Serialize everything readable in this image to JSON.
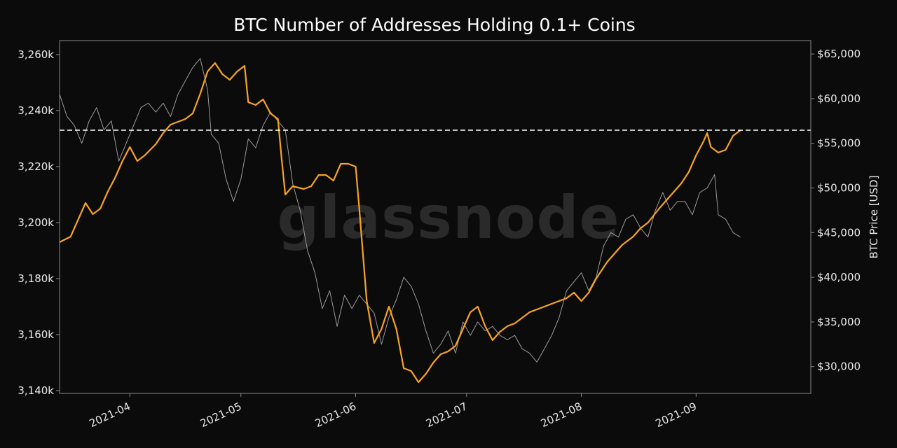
{
  "chart_data": {
    "type": "line",
    "title": "BTC Number of Addresses Holding 0.1+ Coins",
    "watermark": "glassnode",
    "ylabel_right": "BTC Price [USD]",
    "x_range": [
      "2021-03-13",
      "2021-10-02"
    ],
    "y_left_range": [
      3139000,
      3265000
    ],
    "y_right_range": [
      27000,
      66500
    ],
    "x_ticks": [
      {
        "date": "2021-04-01",
        "label": "2021-04"
      },
      {
        "date": "2021-05-01",
        "label": "2021-05"
      },
      {
        "date": "2021-06-01",
        "label": "2021-06"
      },
      {
        "date": "2021-07-01",
        "label": "2021-07"
      },
      {
        "date": "2021-08-01",
        "label": "2021-08"
      },
      {
        "date": "2021-09-01",
        "label": "2021-09"
      }
    ],
    "y_left_ticks": [
      {
        "value": 3140000,
        "label": "3,140k"
      },
      {
        "value": 3160000,
        "label": "3,160k"
      },
      {
        "value": 3180000,
        "label": "3,180k"
      },
      {
        "value": 3200000,
        "label": "3,200k"
      },
      {
        "value": 3220000,
        "label": "3,220k"
      },
      {
        "value": 3240000,
        "label": "3,240k"
      },
      {
        "value": 3260000,
        "label": "3,260k"
      }
    ],
    "y_right_ticks": [
      {
        "value": 30000,
        "label": "$30,000"
      },
      {
        "value": 35000,
        "label": "$35,000"
      },
      {
        "value": 40000,
        "label": "$40,000"
      },
      {
        "value": 45000,
        "label": "$45,000"
      },
      {
        "value": 50000,
        "label": "$50,000"
      },
      {
        "value": 55000,
        "label": "$55,000"
      },
      {
        "value": 60000,
        "label": "$60,000"
      },
      {
        "value": 65000,
        "label": "$65,000"
      }
    ],
    "reference_line": {
      "axis": "left",
      "value": 3233000,
      "style": "dashed",
      "color": "#ffffff"
    },
    "series": [
      {
        "axis": "left",
        "color": "#f7a325",
        "points": [
          [
            "2021-03-13",
            3193000
          ],
          [
            "2021-03-16",
            3195000
          ],
          [
            "2021-03-18",
            3201000
          ],
          [
            "2021-03-20",
            3207000
          ],
          [
            "2021-03-22",
            3203000
          ],
          [
            "2021-03-24",
            3205000
          ],
          [
            "2021-03-26",
            3211000
          ],
          [
            "2021-03-28",
            3216000
          ],
          [
            "2021-03-30",
            3222000
          ],
          [
            "2021-04-01",
            3227000
          ],
          [
            "2021-04-03",
            3222000
          ],
          [
            "2021-04-05",
            3224000
          ],
          [
            "2021-04-08",
            3228000
          ],
          [
            "2021-04-10",
            3232000
          ],
          [
            "2021-04-12",
            3235000
          ],
          [
            "2021-04-14",
            3236000
          ],
          [
            "2021-04-16",
            3237000
          ],
          [
            "2021-04-18",
            3239000
          ],
          [
            "2021-04-20",
            3246000
          ],
          [
            "2021-04-22",
            3254000
          ],
          [
            "2021-04-24",
            3257000
          ],
          [
            "2021-04-26",
            3253000
          ],
          [
            "2021-04-28",
            3251000
          ],
          [
            "2021-04-30",
            3254000
          ],
          [
            "2021-05-02",
            3256000
          ],
          [
            "2021-05-03",
            3243000
          ],
          [
            "2021-05-05",
            3242000
          ],
          [
            "2021-05-07",
            3244000
          ],
          [
            "2021-05-09",
            3239000
          ],
          [
            "2021-05-11",
            3237000
          ],
          [
            "2021-05-12",
            3223000
          ],
          [
            "2021-05-13",
            3210000
          ],
          [
            "2021-05-15",
            3213000
          ],
          [
            "2021-05-18",
            3212000
          ],
          [
            "2021-05-20",
            3213000
          ],
          [
            "2021-05-22",
            3217000
          ],
          [
            "2021-05-24",
            3217000
          ],
          [
            "2021-05-26",
            3215000
          ],
          [
            "2021-05-28",
            3221000
          ],
          [
            "2021-05-30",
            3221000
          ],
          [
            "2021-06-01",
            3220000
          ],
          [
            "2021-06-02",
            3205000
          ],
          [
            "2021-06-04",
            3172000
          ],
          [
            "2021-06-06",
            3157000
          ],
          [
            "2021-06-08",
            3162000
          ],
          [
            "2021-06-10",
            3170000
          ],
          [
            "2021-06-12",
            3162000
          ],
          [
            "2021-06-14",
            3148000
          ],
          [
            "2021-06-16",
            3147000
          ],
          [
            "2021-06-18",
            3143000
          ],
          [
            "2021-06-20",
            3146000
          ],
          [
            "2021-06-22",
            3150000
          ],
          [
            "2021-06-24",
            3153000
          ],
          [
            "2021-06-26",
            3154000
          ],
          [
            "2021-06-28",
            3156000
          ],
          [
            "2021-06-30",
            3162000
          ],
          [
            "2021-07-02",
            3168000
          ],
          [
            "2021-07-04",
            3170000
          ],
          [
            "2021-07-06",
            3163000
          ],
          [
            "2021-07-08",
            3158000
          ],
          [
            "2021-07-10",
            3161000
          ],
          [
            "2021-07-12",
            3163000
          ],
          [
            "2021-07-14",
            3164000
          ],
          [
            "2021-07-16",
            3166000
          ],
          [
            "2021-07-18",
            3168000
          ],
          [
            "2021-07-20",
            3169000
          ],
          [
            "2021-07-22",
            3170000
          ],
          [
            "2021-07-24",
            3171000
          ],
          [
            "2021-07-26",
            3172000
          ],
          [
            "2021-07-28",
            3173000
          ],
          [
            "2021-07-30",
            3175000
          ],
          [
            "2021-08-01",
            3172000
          ],
          [
            "2021-08-03",
            3175000
          ],
          [
            "2021-08-05",
            3180000
          ],
          [
            "2021-08-08",
            3186000
          ],
          [
            "2021-08-10",
            3189000
          ],
          [
            "2021-08-12",
            3192000
          ],
          [
            "2021-08-15",
            3195000
          ],
          [
            "2021-08-17",
            3198000
          ],
          [
            "2021-08-19",
            3200000
          ],
          [
            "2021-08-22",
            3205000
          ],
          [
            "2021-08-24",
            3208000
          ],
          [
            "2021-08-26",
            3211000
          ],
          [
            "2021-08-28",
            3214000
          ],
          [
            "2021-08-30",
            3218000
          ],
          [
            "2021-09-01",
            3224000
          ],
          [
            "2021-09-03",
            3229000
          ],
          [
            "2021-09-04",
            3232000
          ],
          [
            "2021-09-05",
            3227000
          ],
          [
            "2021-09-07",
            3225000
          ],
          [
            "2021-09-09",
            3226000
          ],
          [
            "2021-09-11",
            3231000
          ],
          [
            "2021-09-13",
            3233000
          ]
        ]
      },
      {
        "axis": "right",
        "color": "#9a9a9a",
        "points": [
          [
            "2021-03-13",
            60500
          ],
          [
            "2021-03-15",
            58000
          ],
          [
            "2021-03-17",
            57000
          ],
          [
            "2021-03-19",
            55000
          ],
          [
            "2021-03-21",
            57500
          ],
          [
            "2021-03-23",
            59000
          ],
          [
            "2021-03-25",
            56500
          ],
          [
            "2021-03-27",
            57500
          ],
          [
            "2021-03-29",
            53000
          ],
          [
            "2021-03-31",
            55000
          ],
          [
            "2021-04-02",
            57000
          ],
          [
            "2021-04-04",
            59000
          ],
          [
            "2021-04-06",
            59500
          ],
          [
            "2021-04-08",
            58500
          ],
          [
            "2021-04-10",
            59500
          ],
          [
            "2021-04-12",
            58000
          ],
          [
            "2021-04-14",
            60500
          ],
          [
            "2021-04-16",
            62000
          ],
          [
            "2021-04-18",
            63500
          ],
          [
            "2021-04-20",
            64500
          ],
          [
            "2021-04-22",
            61000
          ],
          [
            "2021-04-23",
            56000
          ],
          [
            "2021-04-25",
            55000
          ],
          [
            "2021-04-27",
            51000
          ],
          [
            "2021-04-29",
            48500
          ],
          [
            "2021-05-01",
            51000
          ],
          [
            "2021-05-03",
            55500
          ],
          [
            "2021-05-05",
            54500
          ],
          [
            "2021-05-07",
            57000
          ],
          [
            "2021-05-09",
            58500
          ],
          [
            "2021-05-11",
            57500
          ],
          [
            "2021-05-13",
            56500
          ],
          [
            "2021-05-15",
            50500
          ],
          [
            "2021-05-17",
            47500
          ],
          [
            "2021-05-19",
            43000
          ],
          [
            "2021-05-21",
            40500
          ],
          [
            "2021-05-23",
            36500
          ],
          [
            "2021-05-25",
            38500
          ],
          [
            "2021-05-27",
            34500
          ],
          [
            "2021-05-29",
            38000
          ],
          [
            "2021-05-31",
            36500
          ],
          [
            "2021-06-02",
            38000
          ],
          [
            "2021-06-04",
            37000
          ],
          [
            "2021-06-06",
            36000
          ],
          [
            "2021-06-08",
            32500
          ],
          [
            "2021-06-10",
            35500
          ],
          [
            "2021-06-12",
            37500
          ],
          [
            "2021-06-14",
            40000
          ],
          [
            "2021-06-16",
            39000
          ],
          [
            "2021-06-18",
            37000
          ],
          [
            "2021-06-20",
            34000
          ],
          [
            "2021-06-22",
            31500
          ],
          [
            "2021-06-24",
            32500
          ],
          [
            "2021-06-26",
            34000
          ],
          [
            "2021-06-28",
            31500
          ],
          [
            "2021-06-30",
            35000
          ],
          [
            "2021-07-02",
            33500
          ],
          [
            "2021-07-04",
            35000
          ],
          [
            "2021-07-06",
            34000
          ],
          [
            "2021-07-08",
            34500
          ],
          [
            "2021-07-10",
            33500
          ],
          [
            "2021-07-12",
            33000
          ],
          [
            "2021-07-14",
            33500
          ],
          [
            "2021-07-16",
            32000
          ],
          [
            "2021-07-18",
            31500
          ],
          [
            "2021-07-20",
            30500
          ],
          [
            "2021-07-22",
            32000
          ],
          [
            "2021-07-24",
            33500
          ],
          [
            "2021-07-26",
            35500
          ],
          [
            "2021-07-28",
            38500
          ],
          [
            "2021-07-30",
            39500
          ],
          [
            "2021-08-01",
            40500
          ],
          [
            "2021-08-03",
            38500
          ],
          [
            "2021-08-05",
            40000
          ],
          [
            "2021-08-07",
            43500
          ],
          [
            "2021-08-09",
            45000
          ],
          [
            "2021-08-11",
            44500
          ],
          [
            "2021-08-13",
            46500
          ],
          [
            "2021-08-15",
            47000
          ],
          [
            "2021-08-17",
            45500
          ],
          [
            "2021-08-19",
            44500
          ],
          [
            "2021-08-21",
            47500
          ],
          [
            "2021-08-23",
            49500
          ],
          [
            "2021-08-25",
            47500
          ],
          [
            "2021-08-27",
            48500
          ],
          [
            "2021-08-29",
            48500
          ],
          [
            "2021-08-31",
            47000
          ],
          [
            "2021-09-02",
            49500
          ],
          [
            "2021-09-04",
            50000
          ],
          [
            "2021-09-06",
            51500
          ],
          [
            "2021-09-07",
            47000
          ],
          [
            "2021-09-09",
            46500
          ],
          [
            "2021-09-11",
            45000
          ],
          [
            "2021-09-13",
            44500
          ]
        ]
      }
    ]
  }
}
